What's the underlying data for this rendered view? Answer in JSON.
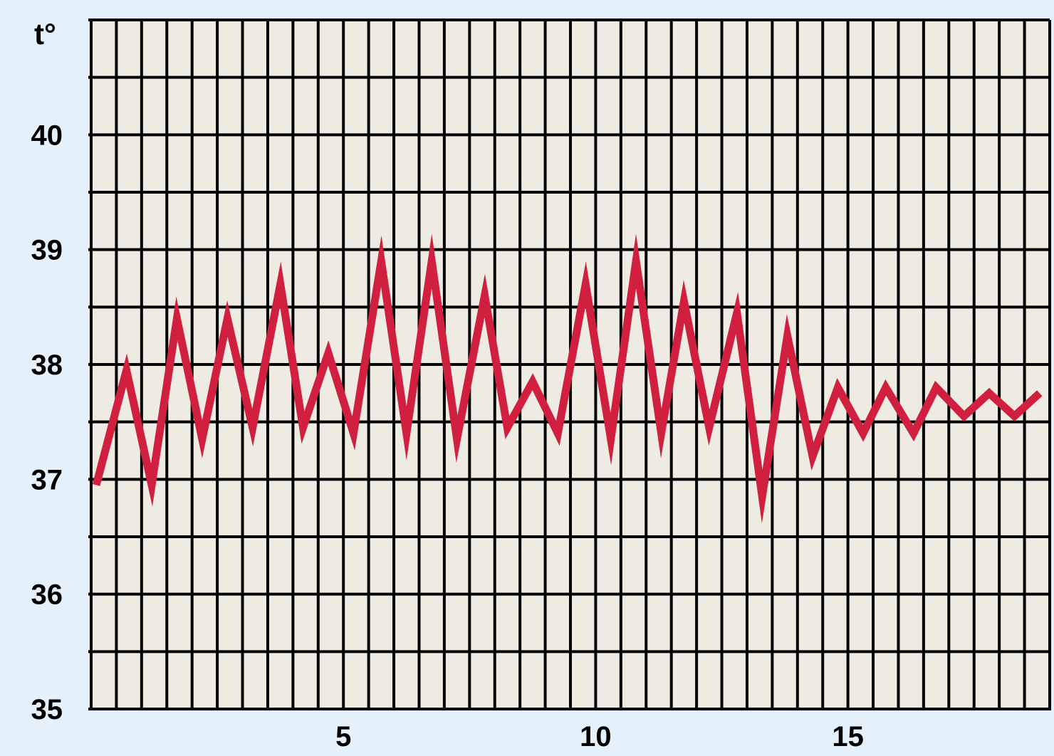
{
  "colors": {
    "background": "#e4f1fb",
    "plot_background": "#eeebe2",
    "grid": "#000000",
    "series": "#d1203f"
  },
  "chart_data": {
    "type": "line",
    "ylabel": "t°",
    "xlabel": "",
    "grid": true,
    "legend": "none",
    "xlim": [
      0,
      19
    ],
    "ylim": [
      35,
      41
    ],
    "x_ticks": [
      5,
      10,
      15
    ],
    "y_ticks": [
      35,
      36,
      37,
      38,
      39,
      40
    ],
    "series": [
      {
        "x": [
          0.1,
          0.7,
          1.2,
          1.7,
          2.2,
          2.7,
          3.2,
          3.75,
          4.2,
          4.7,
          5.2,
          5.75,
          6.25,
          6.75,
          7.25,
          7.8,
          8.25,
          8.75,
          9.25,
          9.8,
          10.3,
          10.8,
          11.3,
          11.75,
          12.25,
          12.8,
          13.3,
          13.8,
          14.3,
          14.8,
          15.3,
          15.75,
          16.3,
          16.75,
          17.3,
          17.8,
          18.3,
          18.8
        ],
        "values": [
          36.95,
          37.95,
          36.95,
          38.4,
          37.35,
          38.4,
          37.45,
          38.7,
          37.45,
          38.1,
          37.4,
          38.9,
          37.4,
          38.9,
          37.35,
          38.6,
          37.45,
          37.85,
          37.4,
          38.7,
          37.35,
          38.9,
          37.4,
          38.55,
          37.45,
          38.45,
          36.85,
          38.25,
          37.2,
          37.8,
          37.4,
          37.8,
          37.4,
          37.8,
          37.55,
          37.75,
          37.55,
          37.75
        ]
      }
    ]
  }
}
